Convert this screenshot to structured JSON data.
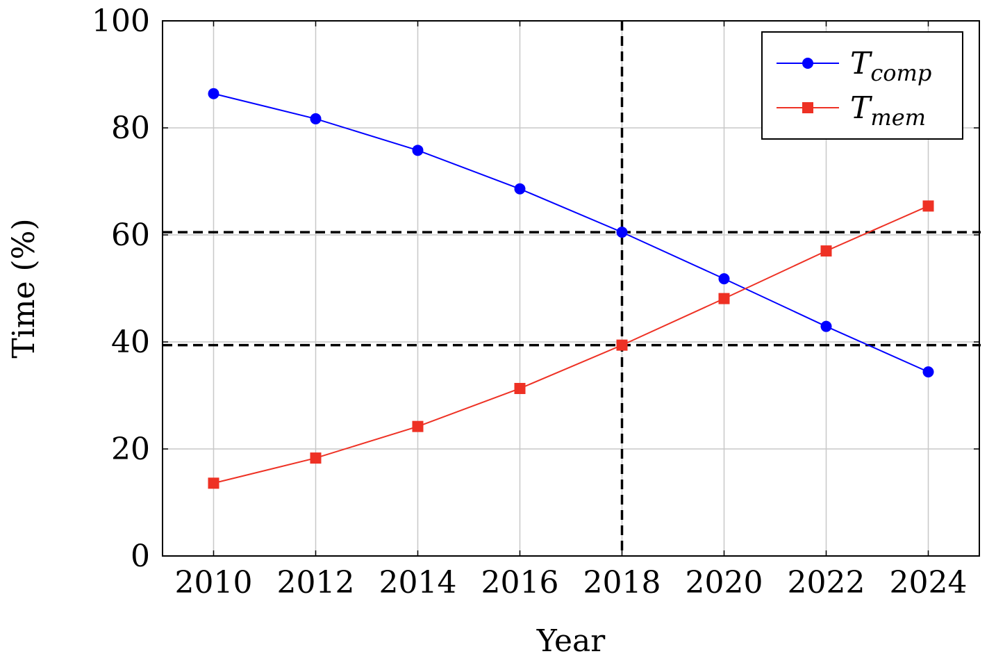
{
  "chart_data": {
    "type": "line",
    "x": [
      2010,
      2012,
      2014,
      2016,
      2018,
      2020,
      2022,
      2024
    ],
    "series": [
      {
        "name_main": "T",
        "name_sub": "comp",
        "marker": "circle",
        "color": "#0000ff",
        "values": [
          86.4,
          81.7,
          75.8,
          68.6,
          60.5,
          51.8,
          42.9,
          34.4
        ]
      },
      {
        "name_main": "T",
        "name_sub": "mem",
        "marker": "square",
        "color": "#ee3124",
        "values": [
          13.6,
          18.3,
          24.2,
          31.3,
          39.4,
          48.1,
          57.0,
          65.4
        ]
      }
    ],
    "xlabel": "Year",
    "ylabel": "Time (%)",
    "xlim": [
      2009,
      2025
    ],
    "ylim": [
      0,
      100
    ],
    "xticks": [
      "2010",
      "2012",
      "2014",
      "2016",
      "2018",
      "2020",
      "2022",
      "2024"
    ],
    "yticks": [
      "0",
      "20",
      "40",
      "60",
      "80",
      "100"
    ],
    "grid": true,
    "legend_position": "top-right",
    "reference_lines": {
      "vertical_x": 2018,
      "horizontal_y": [
        60.5,
        39.4
      ],
      "style": "dashed",
      "color": "#000000"
    }
  }
}
